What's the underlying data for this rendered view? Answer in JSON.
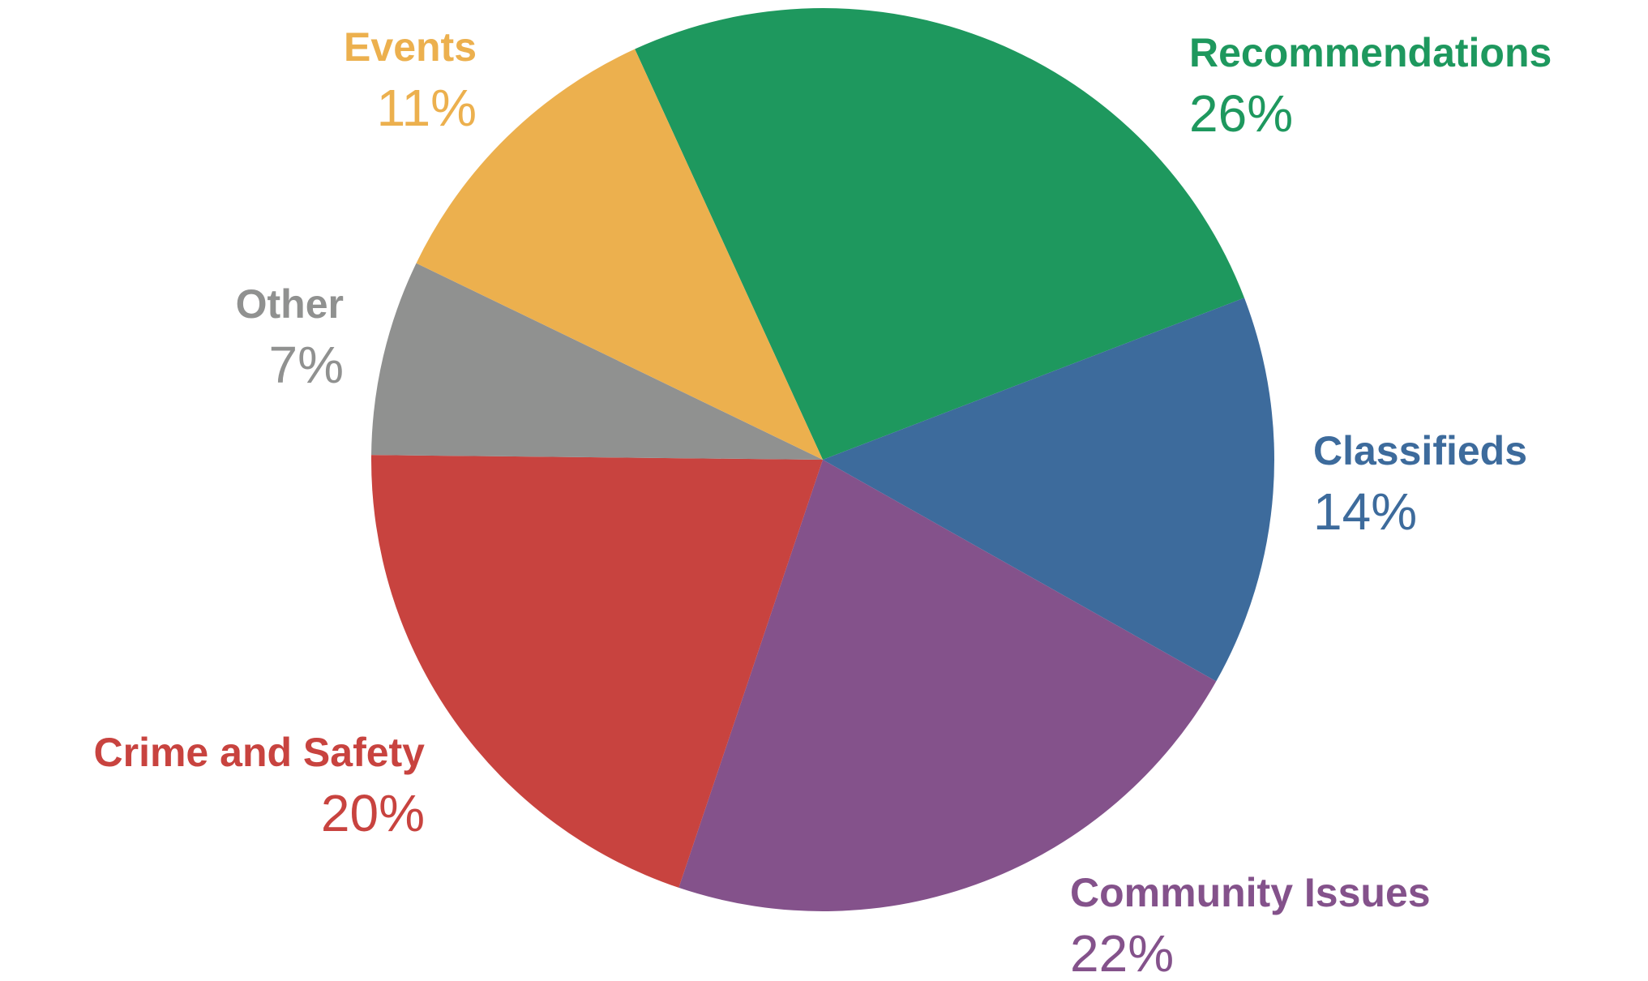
{
  "chart_data": {
    "type": "pie",
    "title": "",
    "slices": [
      {
        "label": "Recommendations",
        "value": 26,
        "display": "26%",
        "color": "#1e985e"
      },
      {
        "label": "Classifieds",
        "value": 14,
        "display": "14%",
        "color": "#3d6b9c"
      },
      {
        "label": "Community Issues",
        "value": 22,
        "display": "22%",
        "color": "#84528b"
      },
      {
        "label": "Crime and Safety",
        "value": 20,
        "display": "20%",
        "color": "#c8433f"
      },
      {
        "label": "Other",
        "value": 7,
        "display": "7%",
        "color": "#909190"
      },
      {
        "label": "Events",
        "value": 11,
        "display": "11%",
        "color": "#ecb04e"
      }
    ],
    "start_angle_deg": -24.6,
    "direction": "clockwise",
    "legend": "none"
  }
}
